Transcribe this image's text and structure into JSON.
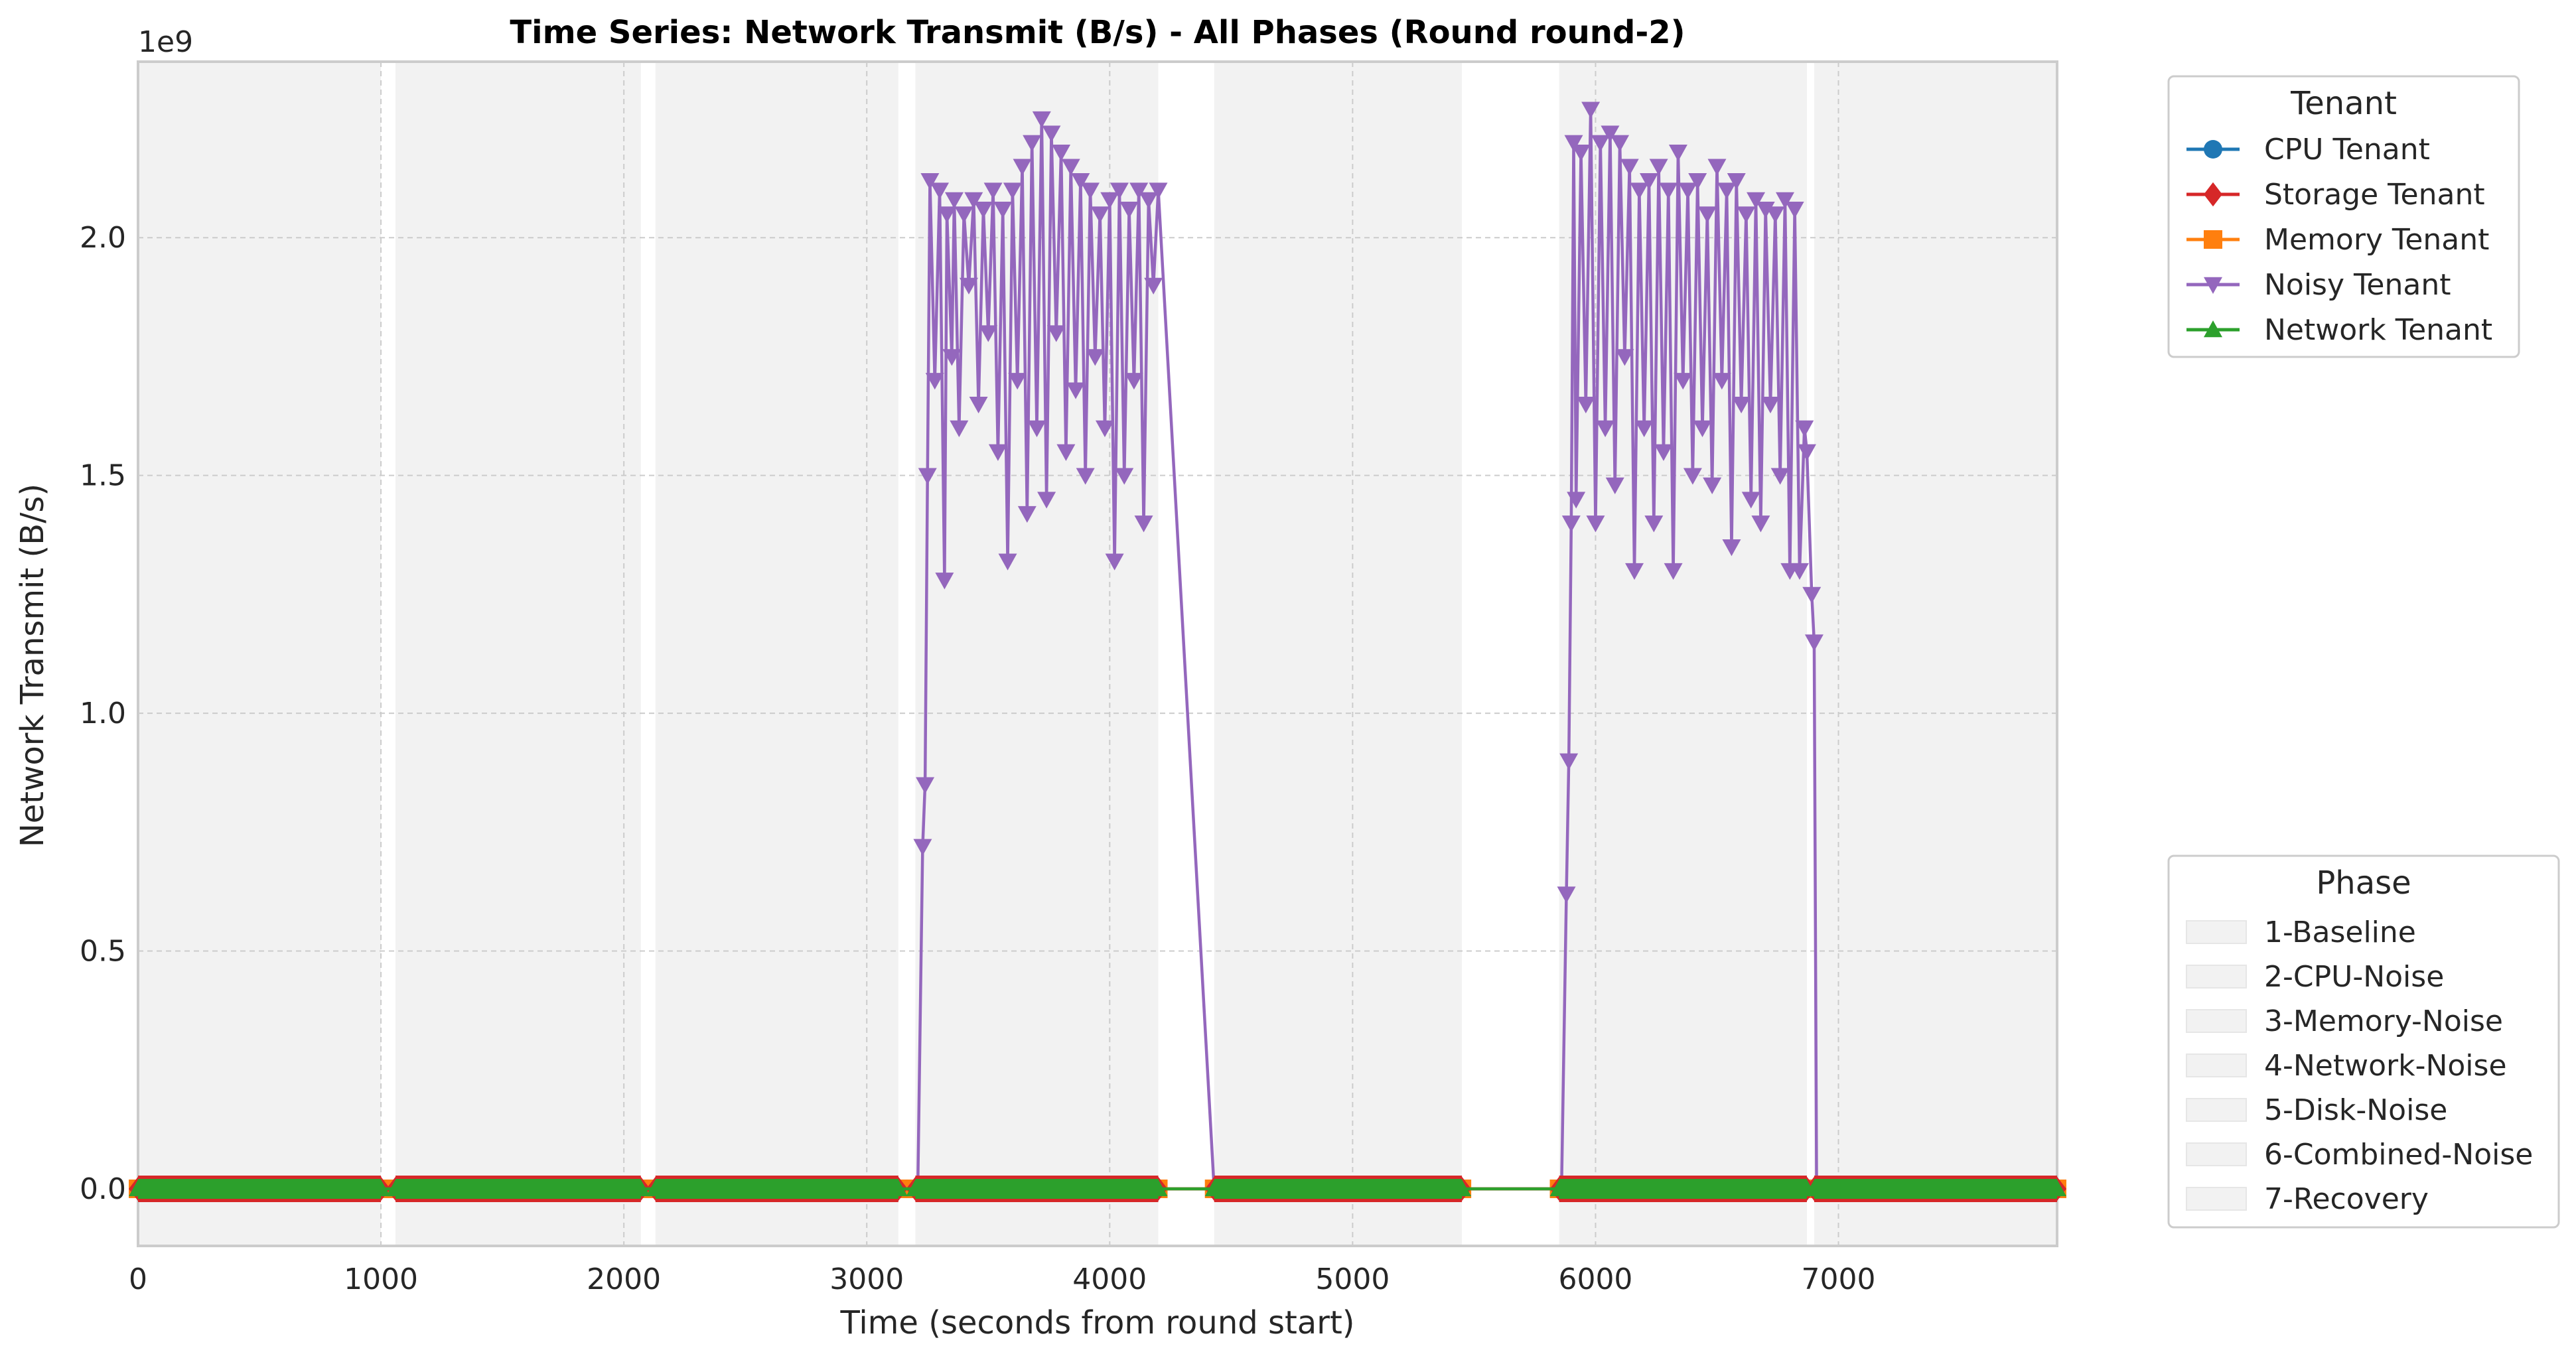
{
  "chart_data": {
    "type": "line",
    "title": "Time Series: Network Transmit (B/s) - All Phases (Round round-2)",
    "xlabel": "Time (seconds from round start)",
    "ylabel": "Network Transmit (B/s)",
    "y_offset_label": "1e9",
    "xlim": [
      0,
      7900
    ],
    "ylim": [
      -0.12,
      2.37
    ],
    "x_ticks": [
      0,
      1000,
      2000,
      3000,
      4000,
      5000,
      6000,
      7000
    ],
    "x_tick_labels": [
      "0",
      "1000",
      "2000",
      "3000",
      "4000",
      "5000",
      "6000",
      "7000"
    ],
    "y_ticks": [
      0.0,
      0.5,
      1.0,
      1.5,
      2.0
    ],
    "y_tick_labels": [
      "0.0",
      "0.5",
      "1.0",
      "1.5",
      "2.0"
    ],
    "grid": true,
    "phases": [
      {
        "name": "1-Baseline",
        "start": 0,
        "end": 1000
      },
      {
        "name": "2-CPU-Noise",
        "start": 1060,
        "end": 2070
      },
      {
        "name": "3-Memory-Noise",
        "start": 2130,
        "end": 3130
      },
      {
        "name": "4-Network-Noise",
        "start": 3200,
        "end": 4200
      },
      {
        "name": "5-Disk-Noise",
        "start": 4430,
        "end": 5450
      },
      {
        "name": "6-Combined-Noise",
        "start": 5850,
        "end": 6870
      },
      {
        "name": "7-Recovery",
        "start": 6900,
        "end": 7900
      }
    ],
    "series": [
      {
        "name": "CPU Tenant",
        "color": "#1f77b4",
        "marker": "circle",
        "x": [
          0,
          1000,
          1060,
          2070,
          2130,
          3130,
          3200,
          4200,
          4430,
          5450,
          5850,
          6870,
          6900,
          7900
        ],
        "y": [
          0,
          0,
          0,
          0,
          0,
          0,
          0,
          0,
          0,
          0,
          0,
          0,
          0,
          0
        ]
      },
      {
        "name": "Storage Tenant",
        "color": "#d62728",
        "marker": "diamond",
        "x": [
          0,
          1000,
          1060,
          2070,
          2130,
          3130,
          3200,
          4200,
          4430,
          5450,
          5850,
          6870,
          6900,
          7900
        ],
        "y": [
          0,
          0,
          0,
          0,
          0,
          0,
          0,
          0,
          0,
          0,
          0,
          0,
          0,
          0
        ]
      },
      {
        "name": "Memory Tenant",
        "color": "#ff7f0e",
        "marker": "square",
        "x": [
          0,
          1000,
          1060,
          2070,
          2130,
          3130,
          3200,
          4200,
          4430,
          5450,
          5850,
          6870,
          6900,
          7900
        ],
        "y": [
          0,
          0,
          0,
          0,
          0,
          0,
          0,
          0,
          0,
          0,
          0,
          0,
          0,
          0
        ]
      },
      {
        "name": "Noisy Tenant",
        "color": "#9467bd",
        "marker": "triangle-down",
        "x": [
          3210,
          3230,
          3240,
          3250,
          3260,
          3280,
          3300,
          3320,
          3330,
          3350,
          3360,
          3380,
          3400,
          3420,
          3440,
          3460,
          3480,
          3500,
          3520,
          3540,
          3560,
          3580,
          3600,
          3620,
          3640,
          3660,
          3680,
          3700,
          3720,
          3740,
          3760,
          3780,
          3800,
          3820,
          3840,
          3860,
          3880,
          3900,
          3920,
          3940,
          3960,
          3980,
          4000,
          4020,
          4040,
          4060,
          4080,
          4100,
          4120,
          4140,
          4160,
          4180,
          4200,
          4430,
          5860,
          5880,
          5890,
          5900,
          5910,
          5920,
          5940,
          5960,
          5980,
          6000,
          6020,
          6040,
          6060,
          6080,
          6100,
          6120,
          6140,
          6160,
          6180,
          6200,
          6220,
          6240,
          6260,
          6280,
          6300,
          6320,
          6340,
          6360,
          6380,
          6400,
          6420,
          6440,
          6460,
          6480,
          6500,
          6520,
          6540,
          6560,
          6580,
          6600,
          6620,
          6640,
          6660,
          6680,
          6700,
          6720,
          6740,
          6760,
          6780,
          6800,
          6820,
          6840,
          6860,
          6870,
          6890,
          6900,
          6910
        ],
        "y": [
          0.0,
          0.72,
          0.85,
          1.5,
          2.12,
          1.7,
          2.1,
          1.28,
          2.05,
          1.75,
          2.08,
          1.6,
          2.05,
          1.9,
          2.08,
          1.65,
          2.06,
          1.8,
          2.1,
          1.55,
          2.06,
          1.32,
          2.1,
          1.7,
          2.15,
          1.42,
          2.2,
          1.6,
          2.25,
          1.45,
          2.22,
          1.8,
          2.18,
          1.55,
          2.15,
          1.68,
          2.12,
          1.5,
          2.1,
          1.75,
          2.05,
          1.6,
          2.08,
          1.32,
          2.1,
          1.5,
          2.06,
          1.7,
          2.1,
          1.4,
          2.08,
          1.9,
          2.1,
          0.0,
          0.0,
          0.62,
          0.9,
          1.4,
          2.2,
          1.45,
          2.18,
          1.65,
          2.27,
          1.4,
          2.2,
          1.6,
          2.22,
          1.48,
          2.2,
          1.75,
          2.15,
          1.3,
          2.1,
          1.6,
          2.12,
          1.4,
          2.15,
          1.55,
          2.1,
          1.3,
          2.18,
          1.7,
          2.1,
          1.5,
          2.12,
          1.6,
          2.05,
          1.48,
          2.15,
          1.7,
          2.1,
          1.35,
          2.12,
          1.65,
          2.05,
          1.45,
          2.08,
          1.4,
          2.06,
          1.65,
          2.05,
          1.5,
          2.08,
          1.3,
          2.06,
          1.3,
          1.6,
          1.55,
          1.25,
          1.15,
          0.0
        ]
      },
      {
        "name": "Network Tenant",
        "color": "#2ca02c",
        "marker": "triangle-up",
        "x": [
          0,
          1000,
          1060,
          2070,
          2130,
          3130,
          3200,
          4200,
          4430,
          5450,
          5850,
          6870,
          6900,
          7900
        ],
        "y": [
          0,
          0,
          0,
          0,
          0,
          0,
          0,
          0,
          0,
          0,
          0,
          0,
          0,
          0
        ]
      }
    ],
    "legend_title": "Tenant",
    "phase_legend_title": "Phase",
    "legend_placement": "upper-right outside plot",
    "phase_legend_placement": "lower-right outside plot"
  }
}
